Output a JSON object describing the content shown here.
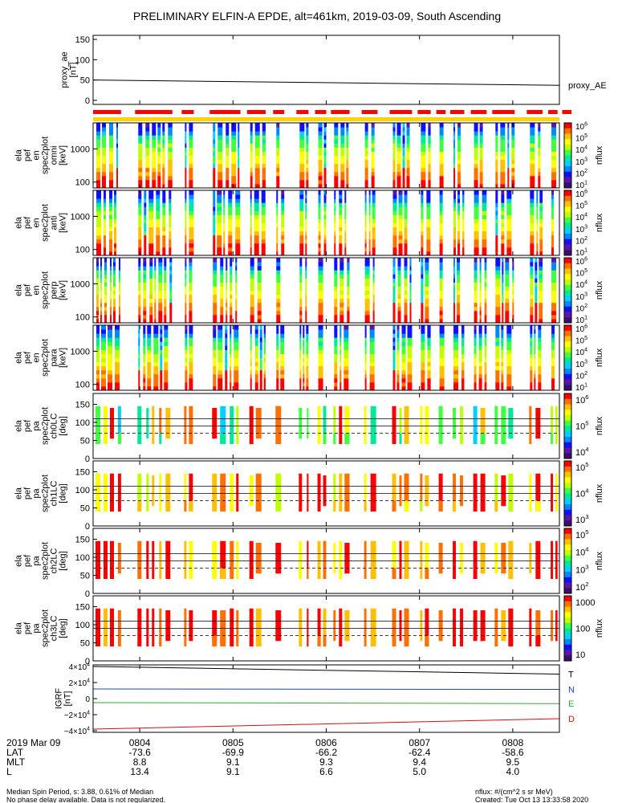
{
  "title": "PRELIMINARY ELFIN-A EPDE, alt=461km, 2019-03-09, South Ascending",
  "colors": {
    "axis": "#000000",
    "spin_bar": "#ff0000",
    "tracking_bar": "#ffd400",
    "igrf_T": "#000000",
    "igrf_N": "#1f3fd0",
    "igrf_E": "#2ea82e",
    "igrf_D": "#d01010",
    "colormap": [
      "#3a0d6e",
      "#5a17a8",
      "#1010ff",
      "#0088ff",
      "#00d0ff",
      "#00e89a",
      "#40ff40",
      "#c0ff00",
      "#ffff00",
      "#ffc000",
      "#ff7000",
      "#ff0000"
    ]
  },
  "chart_data": [
    {
      "id": "proxy_ae",
      "type": "line",
      "ylabel": [
        "proxy_ae",
        "[nT]"
      ],
      "series_label": "proxy_AE",
      "yticks": [
        0,
        50,
        100,
        150
      ],
      "ylim": [
        -10,
        160
      ],
      "x": [
        "08:03:30",
        "08:08:30"
      ],
      "y": [
        50,
        37
      ]
    },
    {
      "id": "spin_gaps",
      "type": "bar",
      "segments_min": [
        [
          3.5,
          3.8
        ],
        [
          3.95,
          4.35
        ],
        [
          4.45,
          4.58
        ],
        [
          4.75,
          5.08
        ],
        [
          5.15,
          5.35
        ],
        [
          5.43,
          5.55
        ],
        [
          5.68,
          5.81
        ],
        [
          5.88,
          6.0
        ],
        [
          6.05,
          6.25
        ],
        [
          6.38,
          6.55
        ],
        [
          6.68,
          6.92
        ],
        [
          6.98,
          7.12
        ],
        [
          7.18,
          7.28
        ],
        [
          7.33,
          7.48
        ],
        [
          7.55,
          7.72
        ],
        [
          7.78,
          8.02
        ],
        [
          8.15,
          8.32
        ],
        [
          8.38,
          8.48
        ],
        [
          8.53,
          8.63
        ]
      ]
    },
    {
      "id": "en_omni",
      "type": "heatmap",
      "ylabel": [
        "ela",
        "pef",
        "en",
        "spec2plot",
        "omni",
        "[keV]"
      ],
      "ytick_labels": [
        "100",
        "1000"
      ],
      "colorbar": {
        "label": "nflux",
        "ticks": [
          "10^1",
          "10^2",
          "10^3",
          "10^4",
          "10^5",
          "10^6"
        ]
      }
    },
    {
      "id": "en_anti",
      "type": "heatmap",
      "ylabel": [
        "ela",
        "pef",
        "en",
        "spec2plot",
        "anti",
        "[keV]"
      ],
      "ytick_labels": [
        "100",
        "1000"
      ],
      "colorbar": {
        "label": "nflux",
        "ticks": [
          "10^1",
          "10^2",
          "10^3",
          "10^4",
          "10^5",
          "10^6"
        ]
      }
    },
    {
      "id": "en_perp",
      "type": "heatmap",
      "ylabel": [
        "ela",
        "pef",
        "en",
        "spec2plot",
        "perp",
        "[keV]"
      ],
      "ytick_labels": [
        "100",
        "1000"
      ],
      "colorbar": {
        "label": "nflux",
        "ticks": [
          "10^1",
          "10^2",
          "10^3",
          "10^4",
          "10^5",
          "10^6"
        ]
      }
    },
    {
      "id": "en_para",
      "type": "heatmap",
      "ylabel": [
        "ela",
        "pef",
        "en",
        "spec2plot",
        "para",
        "[keV]"
      ],
      "ytick_labels": [
        "100",
        "1000"
      ],
      "colorbar": {
        "label": "nflux",
        "ticks": [
          "10^1",
          "10^2",
          "10^3",
          "10^4",
          "10^5",
          "10^6"
        ]
      }
    },
    {
      "id": "pa_ch0",
      "type": "heatmap",
      "ylabel": [
        "ela",
        "pef",
        "pa",
        "spec2plot",
        "ch0LC",
        "[deg]"
      ],
      "yticks": [
        0,
        50,
        100,
        150
      ],
      "ylim": [
        0,
        180
      ],
      "colorbar": {
        "label": "nflux",
        "ticks": [
          "10^4",
          "10^5",
          "10^6"
        ]
      }
    },
    {
      "id": "pa_ch1",
      "type": "heatmap",
      "ylabel": [
        "ela",
        "pef",
        "pa",
        "spec2plot",
        "ch1LC",
        "[deg]"
      ],
      "yticks": [
        0,
        50,
        100,
        150
      ],
      "ylim": [
        0,
        180
      ],
      "colorbar": {
        "label": "nflux",
        "ticks": [
          "10^3",
          "10^4",
          "10^5"
        ]
      }
    },
    {
      "id": "pa_ch2",
      "type": "heatmap",
      "ylabel": [
        "ela",
        "pef",
        "pa",
        "spec2plot",
        "ch2LC",
        "[deg]"
      ],
      "yticks": [
        0,
        50,
        100,
        150
      ],
      "ylim": [
        0,
        180
      ],
      "colorbar": {
        "label": "nflux",
        "ticks": [
          "10^2",
          "10^3",
          "10^4",
          "10^5"
        ]
      }
    },
    {
      "id": "pa_ch3",
      "type": "heatmap",
      "ylabel": [
        "ela",
        "pef",
        "pa",
        "spec2plot",
        "ch3LC",
        "[deg]"
      ],
      "yticks": [
        0,
        50,
        100,
        150
      ],
      "ylim": [
        0,
        180
      ],
      "colorbar": {
        "label": "nflux",
        "ticks": [
          "10",
          "100",
          "1000"
        ]
      }
    },
    {
      "id": "igrf",
      "type": "line",
      "ylabel": [
        "IGRF",
        "[nT]"
      ],
      "ytick_labels": [
        "−4×10^4",
        "−2×10^4",
        "0",
        "2×10^4",
        "4×10^4"
      ],
      "ylim": [
        -42000,
        42000
      ],
      "series": [
        {
          "name": "T",
          "x": [
            "08:03:30",
            "08:08:30"
          ],
          "y": [
            40000,
            30500
          ]
        },
        {
          "name": "N",
          "x": [
            "08:03:30",
            "08:08:30"
          ],
          "y": [
            12000,
            11500
          ]
        },
        {
          "name": "E",
          "x": [
            "08:03:30",
            "08:08:30"
          ],
          "y": [
            -5000,
            -6200
          ]
        },
        {
          "name": "D",
          "x": [
            "08:03:30",
            "08:08:30"
          ],
          "y": [
            -38000,
            -25000
          ]
        }
      ]
    }
  ],
  "x_axis": {
    "date": "2019 Mar 09",
    "row_labels": [
      "LAT",
      "MLT",
      "L"
    ],
    "ticks": [
      {
        "time": "0804",
        "LAT": "-73.6",
        "MLT": "8.8",
        "L": "13.4"
      },
      {
        "time": "0805",
        "LAT": "-69.9",
        "MLT": "9.1",
        "L": "9.1"
      },
      {
        "time": "0806",
        "LAT": "-66.2",
        "MLT": "9.3",
        "L": "6.6"
      },
      {
        "time": "0807",
        "LAT": "-62.4",
        "MLT": "9.4",
        "L": "5.0"
      },
      {
        "time": "0808",
        "LAT": "-58.6",
        "MLT": "9.5",
        "L": "4.0"
      }
    ]
  },
  "footer": {
    "left_line1": "Median Spin Period, s: 3.88, 0.61% of Median",
    "left_line2": "No phase delay available. Data is not regularized.",
    "right_line1": "nflux: #/(cm^2 s sr MeV)",
    "right_line2": "Created: Tue Oct 13 13:33:58 2020"
  }
}
